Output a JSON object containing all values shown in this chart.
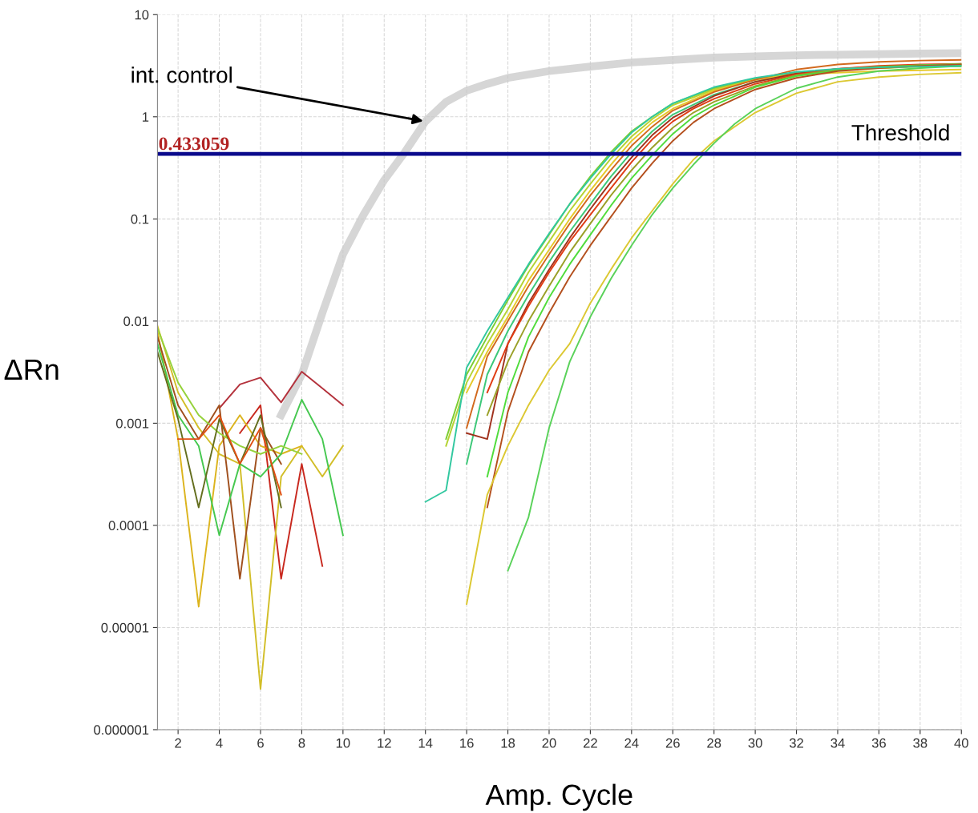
{
  "chart_data": {
    "type": "line",
    "xlabel": "Amp. Cycle",
    "ylabel": "ΔRn",
    "log": "y",
    "grid": true,
    "legend": false,
    "marker": "none",
    "line_style": "solid",
    "xlim": [
      1,
      40
    ],
    "xticks": [
      2,
      4,
      6,
      8,
      10,
      12,
      14,
      16,
      18,
      20,
      22,
      24,
      26,
      28,
      30,
      32,
      34,
      36,
      38,
      40
    ],
    "ylim": [
      1e-06,
      10
    ],
    "yticks": [
      {
        "value": 1e-06,
        "label": "0.000001"
      },
      {
        "value": 1e-05,
        "label": "0.00001"
      },
      {
        "value": 0.0001,
        "label": "0.0001"
      },
      {
        "value": 0.001,
        "label": "0.001"
      },
      {
        "value": 0.01,
        "label": "0.01"
      },
      {
        "value": 0.1,
        "label": "0.1"
      },
      {
        "value": 1,
        "label": "1"
      },
      {
        "value": 10,
        "label": "10"
      }
    ],
    "ref_lines": [
      {
        "axis": "y",
        "value": 0.433059,
        "label": "0.433059",
        "color": "#0a0a8c"
      }
    ],
    "annotations": [
      {
        "text": "Threshold",
        "x": 40,
        "y": 0.433059
      },
      {
        "text": "int. control",
        "x": 14,
        "y": 0.9
      }
    ],
    "series": [
      {
        "color": "#c8c8c8",
        "x": [
          7,
          8,
          9,
          10,
          11,
          12,
          13,
          14,
          15,
          16,
          17,
          18,
          20,
          22,
          24,
          26,
          28,
          30,
          32,
          34,
          36,
          38,
          40
        ],
        "values": [
          0.0012,
          0.003,
          0.012,
          0.045,
          0.11,
          0.24,
          0.45,
          0.9,
          1.4,
          1.8,
          2.1,
          2.4,
          2.8,
          3.1,
          3.4,
          3.6,
          3.8,
          3.9,
          4.0,
          4.05,
          4.1,
          4.15,
          4.2
        ]
      },
      {
        "color": "#b4323c",
        "x": [
          4,
          5,
          6,
          7,
          8,
          9,
          10
        ],
        "values": [
          0.0014,
          0.0024,
          0.0028,
          0.0016,
          0.0032,
          0.0022,
          0.0015
        ]
      },
      {
        "color": "#c8281e",
        "x": [
          5,
          6,
          7,
          8,
          9
        ],
        "values": [
          0.0008,
          0.0015,
          3e-05,
          0.0004,
          4e-05
        ]
      },
      {
        "color": "#d2be28",
        "x": [
          1,
          2,
          3,
          4,
          5,
          6,
          7,
          8,
          9,
          10
        ],
        "values": [
          0.009,
          0.002,
          0.0009,
          0.0005,
          0.0004,
          2.5e-06,
          0.0003,
          0.0006,
          0.0003,
          0.0006
        ]
      },
      {
        "color": "#dcb41e",
        "x": [
          1,
          2,
          3,
          4,
          5,
          6,
          7,
          8
        ],
        "values": [
          0.008,
          0.0007,
          1.6e-05,
          0.0006,
          0.0012,
          0.0006,
          0.0005,
          0.0006
        ]
      },
      {
        "color": "#a0501e",
        "x": [
          1,
          2,
          3,
          4,
          5,
          6,
          7
        ],
        "values": [
          0.007,
          0.0015,
          0.0007,
          0.0015,
          3e-05,
          0.0009,
          0.0004
        ]
      },
      {
        "color": "#46c850",
        "x": [
          1,
          2,
          3,
          4,
          5,
          6,
          7,
          8,
          9,
          10
        ],
        "values": [
          0.006,
          0.0012,
          0.0006,
          8e-05,
          0.0004,
          0.0003,
          0.0005,
          0.0017,
          0.0007,
          8e-05
        ]
      },
      {
        "color": "#96d23c",
        "x": [
          1,
          2,
          3,
          4,
          5,
          6,
          7,
          8
        ],
        "values": [
          0.0085,
          0.0025,
          0.0012,
          0.0008,
          0.0006,
          0.0005,
          0.0006,
          0.0005
        ]
      },
      {
        "color": "#646e1e",
        "x": [
          1,
          2,
          3,
          4,
          5,
          6,
          7
        ],
        "values": [
          0.005,
          0.0011,
          0.00015,
          0.0011,
          0.0004,
          0.0012,
          0.00015
        ]
      },
      {
        "color": "#e05014",
        "x": [
          2,
          3,
          4,
          5,
          6,
          7
        ],
        "values": [
          0.0007,
          0.0007,
          0.0012,
          0.0004,
          0.0009,
          0.0002
        ]
      },
      {
        "color": "#7ccd32",
        "x": [
          15,
          16,
          17,
          18,
          19,
          20,
          21,
          22,
          23,
          24,
          25,
          26,
          28,
          30,
          32,
          34,
          36,
          38,
          40
        ],
        "values": [
          0.0007,
          0.003,
          0.007,
          0.016,
          0.035,
          0.07,
          0.14,
          0.26,
          0.45,
          0.72,
          1.0,
          1.35,
          1.9,
          2.35,
          2.7,
          2.9,
          3.0,
          3.1,
          3.1
        ]
      },
      {
        "color": "#b5d334",
        "x": [
          15,
          16,
          17,
          18,
          19,
          20,
          21,
          22,
          23,
          24,
          25,
          26,
          28,
          30,
          32,
          34,
          36,
          38,
          40
        ],
        "values": [
          0.0006,
          0.0025,
          0.006,
          0.013,
          0.03,
          0.06,
          0.12,
          0.22,
          0.39,
          0.64,
          0.95,
          1.3,
          1.85,
          2.3,
          2.65,
          2.9,
          3.0,
          3.1,
          3.15
        ]
      },
      {
        "color": "#e6c82a",
        "x": [
          16,
          17,
          18,
          19,
          20,
          21,
          22,
          23,
          24,
          25,
          26,
          28,
          30,
          32,
          34,
          36,
          38,
          40
        ],
        "values": [
          0.002,
          0.005,
          0.011,
          0.025,
          0.05,
          0.1,
          0.19,
          0.34,
          0.58,
          0.88,
          1.2,
          1.8,
          2.3,
          2.6,
          2.7,
          2.8,
          2.85,
          2.9
        ]
      },
      {
        "color": "#d2691e",
        "x": [
          16,
          17,
          18,
          19,
          20,
          21,
          22,
          23,
          24,
          25,
          26,
          28,
          30,
          32,
          34,
          36,
          38,
          40
        ],
        "values": [
          0.0009,
          0.0045,
          0.01,
          0.022,
          0.045,
          0.09,
          0.17,
          0.3,
          0.52,
          0.8,
          1.15,
          1.75,
          2.3,
          2.9,
          3.25,
          3.45,
          3.55,
          3.6
        ]
      },
      {
        "color": "#3cc878",
        "x": [
          16,
          17,
          18,
          19,
          20,
          21,
          22,
          23,
          24,
          25,
          26,
          28,
          30,
          32,
          34,
          36,
          38,
          40
        ],
        "values": [
          0.0004,
          0.003,
          0.008,
          0.018,
          0.038,
          0.075,
          0.14,
          0.26,
          0.45,
          0.72,
          1.05,
          1.65,
          2.2,
          2.6,
          2.9,
          3.05,
          3.15,
          3.2
        ]
      },
      {
        "color": "#a0321e",
        "x": [
          16,
          17,
          18,
          19,
          20,
          21,
          22,
          23,
          24,
          25,
          26,
          28,
          30,
          32,
          34,
          36,
          38,
          40
        ],
        "values": [
          0.0008,
          0.0007,
          0.006,
          0.015,
          0.032,
          0.065,
          0.125,
          0.23,
          0.4,
          0.66,
          0.98,
          1.6,
          2.2,
          2.65,
          2.95,
          3.1,
          3.2,
          3.25
        ]
      },
      {
        "color": "#e03c14",
        "x": [
          17,
          18,
          19,
          20,
          21,
          22,
          23,
          24,
          25,
          26,
          27,
          28,
          30,
          32,
          34,
          36,
          38,
          40
        ],
        "values": [
          0.002,
          0.006,
          0.014,
          0.03,
          0.06,
          0.11,
          0.2,
          0.36,
          0.6,
          0.9,
          1.2,
          1.5,
          2.1,
          2.6,
          2.95,
          3.15,
          3.25,
          3.3
        ]
      },
      {
        "color": "#9aa028",
        "x": [
          17,
          18,
          19,
          20,
          21,
          22,
          23,
          24,
          25,
          26,
          27,
          28,
          30,
          32,
          34,
          36,
          38,
          40
        ],
        "values": [
          0.0012,
          0.004,
          0.01,
          0.022,
          0.047,
          0.09,
          0.17,
          0.3,
          0.5,
          0.78,
          1.1,
          1.4,
          2.0,
          2.55,
          2.9,
          3.1,
          3.2,
          3.3
        ]
      },
      {
        "color": "#50dc3c",
        "x": [
          17,
          18,
          19,
          20,
          21,
          22,
          23,
          24,
          25,
          26,
          27,
          28,
          30,
          32,
          34,
          36,
          38,
          40
        ],
        "values": [
          0.0003,
          0.002,
          0.007,
          0.017,
          0.036,
          0.07,
          0.135,
          0.25,
          0.42,
          0.68,
          1.0,
          1.3,
          1.95,
          2.5,
          2.85,
          3.05,
          3.2,
          3.25
        ]
      },
      {
        "color": "#b4501e",
        "x": [
          17,
          18,
          19,
          20,
          21,
          22,
          23,
          24,
          25,
          26,
          27,
          28,
          30,
          32,
          34,
          36,
          38,
          40
        ],
        "values": [
          0.00015,
          0.0013,
          0.005,
          0.012,
          0.027,
          0.055,
          0.105,
          0.2,
          0.35,
          0.58,
          0.88,
          1.2,
          1.85,
          2.4,
          2.8,
          3.0,
          3.15,
          3.25
        ]
      },
      {
        "color": "#dcc832",
        "x": [
          16,
          17,
          18,
          19,
          20,
          21,
          22,
          23,
          24,
          25,
          26,
          27,
          28,
          30,
          32,
          34,
          36,
          38,
          40
        ],
        "values": [
          1.7e-05,
          0.0002,
          0.0006,
          0.0015,
          0.0033,
          0.006,
          0.015,
          0.032,
          0.065,
          0.12,
          0.22,
          0.38,
          0.58,
          1.1,
          1.7,
          2.2,
          2.45,
          2.6,
          2.7
        ]
      },
      {
        "color": "#5ad25a",
        "x": [
          18,
          19,
          20,
          21,
          22,
          23,
          24,
          25,
          26,
          27,
          28,
          29,
          30,
          32,
          34,
          36,
          38,
          40
        ],
        "values": [
          3.6e-05,
          0.00012,
          0.0009,
          0.004,
          0.011,
          0.026,
          0.055,
          0.11,
          0.2,
          0.34,
          0.55,
          0.85,
          1.2,
          1.9,
          2.45,
          2.8,
          3.0,
          3.15
        ]
      },
      {
        "color": "#32c8a0",
        "x": [
          14,
          15,
          16,
          17,
          18,
          19,
          20,
          21,
          22,
          23,
          24,
          25,
          26,
          28,
          30,
          32,
          34,
          36,
          38,
          40
        ],
        "values": [
          0.00017,
          0.00022,
          0.0035,
          0.008,
          0.017,
          0.036,
          0.072,
          0.14,
          0.25,
          0.43,
          0.7,
          1.0,
          1.35,
          1.95,
          2.4,
          2.75,
          2.95,
          3.05,
          3.1,
          3.15
        ]
      }
    ]
  }
}
